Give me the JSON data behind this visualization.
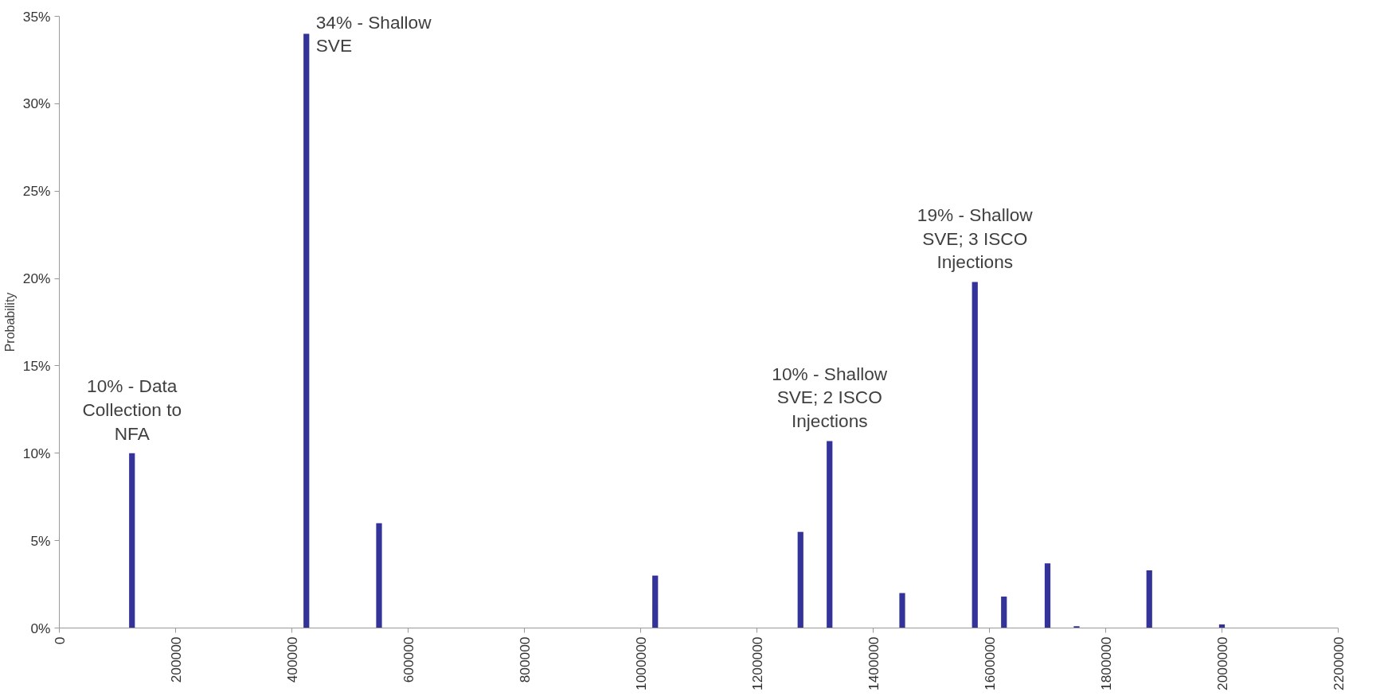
{
  "chart_data": {
    "type": "bar",
    "ylabel": "Probability",
    "x": [
      125000,
      425000,
      550000,
      1025000,
      1275000,
      1325000,
      1450000,
      1575000,
      1625000,
      1700000,
      1750000,
      1875000,
      2000000
    ],
    "series": [
      {
        "color": "#333399",
        "values": [
          10.0,
          34.0,
          6.0,
          3.0,
          5.5,
          10.7,
          2.0,
          19.8,
          1.8,
          3.7,
          0.1,
          3.3,
          0.2
        ]
      }
    ],
    "grid": false,
    "xlim": [
      0,
      2200000
    ],
    "xticks": [
      0,
      200000,
      400000,
      600000,
      800000,
      1000000,
      1200000,
      1400000,
      1600000,
      1800000,
      2000000,
      2200000
    ],
    "ylim": [
      0,
      35
    ],
    "yticks": [
      {
        "value": 0,
        "label": "0%"
      },
      {
        "value": 5,
        "label": "5%"
      },
      {
        "value": 10,
        "label": "10%"
      },
      {
        "value": 15,
        "label": "15%"
      },
      {
        "value": 20,
        "label": "20%"
      },
      {
        "value": 25,
        "label": "25%"
      },
      {
        "value": 30,
        "label": "30%"
      },
      {
        "value": 35,
        "label": "35%"
      }
    ],
    "annotations": [
      {
        "text": "10% - Data Collection to NFA",
        "x": 125000,
        "y": 10.0
      },
      {
        "text": "34% - Shallow SVE",
        "x": 425000,
        "y": 34.0
      },
      {
        "text": "10% - Shallow SVE; 2 ISCO Injections",
        "x": 1325000,
        "y": 10.7
      },
      {
        "text": "19% - Shallow SVE; 3 ISCO Injections",
        "x": 1575000,
        "y": 19.8
      }
    ]
  }
}
